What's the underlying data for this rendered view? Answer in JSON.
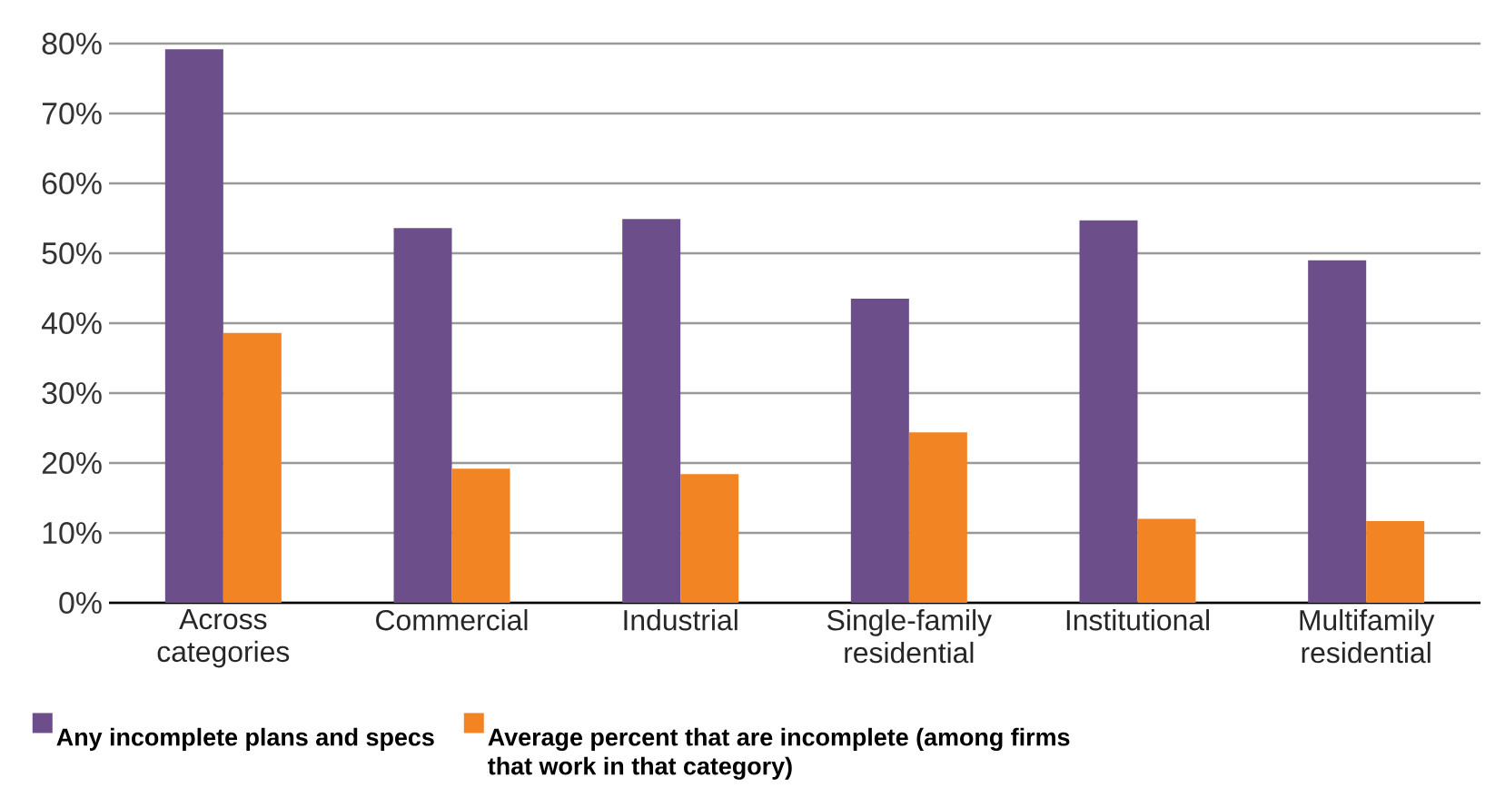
{
  "chart_data": {
    "type": "bar",
    "categories": [
      "Across categories",
      "Commercial",
      "Industrial",
      "Single-family residential",
      "Institutional",
      "Multifamily residential"
    ],
    "series": [
      {
        "name": "Any incomplete plans and specs",
        "color": "#6c4f8a",
        "values": [
          79.2,
          53.6,
          54.9,
          43.5,
          54.7,
          49.0
        ]
      },
      {
        "name": "Average percent that are incomplete (among firms that work in that category)",
        "color": "#f38423",
        "values": [
          38.6,
          19.2,
          18.4,
          24.4,
          12.0,
          11.7
        ]
      }
    ],
    "ylim": [
      0,
      80
    ],
    "yticks": [
      {
        "value": 0,
        "label": "0%"
      },
      {
        "value": 10,
        "label": "10%"
      },
      {
        "value": 20,
        "label": "20%"
      },
      {
        "value": 30,
        "label": "30%"
      },
      {
        "value": 40,
        "label": "40%"
      },
      {
        "value": 50,
        "label": "50%"
      },
      {
        "value": 60,
        "label": "60%"
      },
      {
        "value": 70,
        "label": "70%"
      },
      {
        "value": 80,
        "label": "80%"
      }
    ],
    "grid": "y",
    "legend": "bottom left"
  }
}
